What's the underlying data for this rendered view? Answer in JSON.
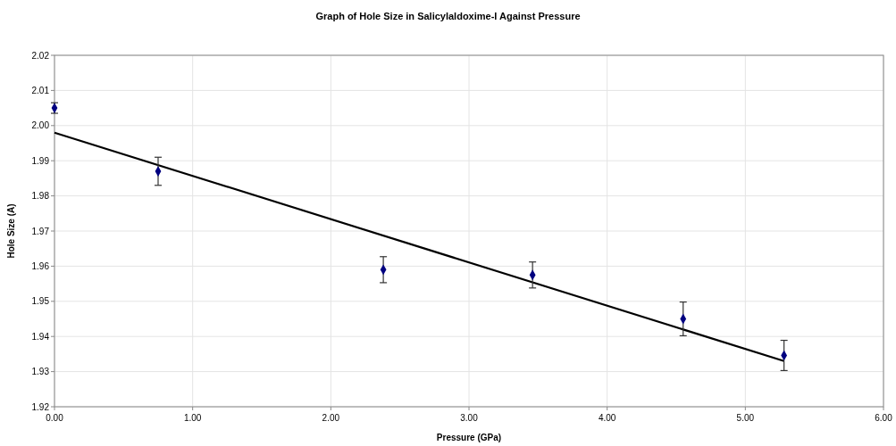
{
  "chart_data": {
    "type": "scatter",
    "title": "Graph of Hole Size in Salicylaldoxime-I Against Pressure",
    "xlabel": "Pressure (GPa)",
    "ylabel": "Hole Size (A)",
    "xlim": [
      0,
      6
    ],
    "xticks": [
      {
        "value": 0,
        "label": "0.00"
      },
      {
        "value": 1,
        "label": "1.00"
      },
      {
        "value": 2,
        "label": "2.00"
      },
      {
        "value": 3,
        "label": "3.00"
      },
      {
        "value": 4,
        "label": "4.00"
      },
      {
        "value": 5,
        "label": "5.00"
      },
      {
        "value": 6,
        "label": "6.00"
      }
    ],
    "ylim": [
      1.92,
      2.02
    ],
    "yticks": [
      {
        "value": 1.92,
        "label": "1.92"
      },
      {
        "value": 1.93,
        "label": "1.93"
      },
      {
        "value": 1.94,
        "label": "1.94"
      },
      {
        "value": 1.95,
        "label": "1.95"
      },
      {
        "value": 1.96,
        "label": "1.96"
      },
      {
        "value": 1.97,
        "label": "1.97"
      },
      {
        "value": 1.98,
        "label": "1.98"
      },
      {
        "value": 1.99,
        "label": "1.99"
      },
      {
        "value": 2.0,
        "label": "2.00"
      },
      {
        "value": 2.01,
        "label": "2.01"
      },
      {
        "value": 2.02,
        "label": "2.02"
      }
    ],
    "grid": true,
    "marker": "diamond",
    "series": [
      {
        "type": "line",
        "color": "#000000",
        "x": [
          0,
          5.28
        ],
        "values": [
          1.998,
          1.933
        ],
        "marker": "none",
        "line_style": "solid"
      },
      {
        "color": "#000080",
        "x": [
          0,
          0.75,
          2.38,
          3.46,
          4.55,
          5.28
        ],
        "values": [
          2.005,
          1.987,
          1.959,
          1.9575,
          1.945,
          1.9346
        ],
        "errors": [
          0.0015,
          0.004,
          0.0037,
          0.0037,
          0.0048,
          0.0043
        ]
      }
    ]
  }
}
